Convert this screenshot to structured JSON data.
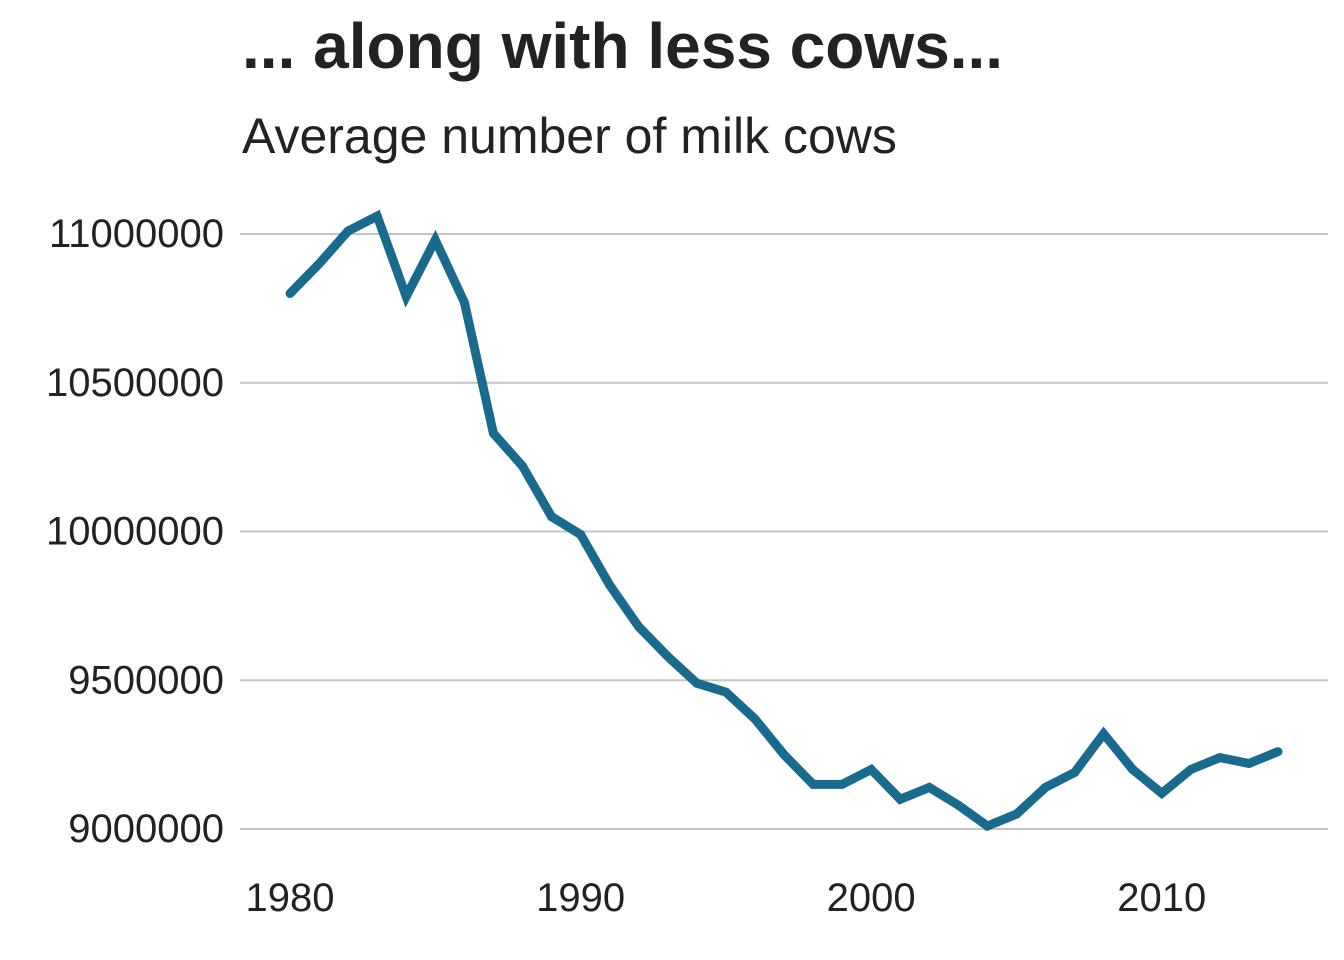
{
  "chart_data": {
    "type": "line",
    "title": "... along with less cows...",
    "subtitle": "Average number of milk cows",
    "xlabel": "",
    "ylabel": "",
    "xlim": [
      1980,
      2014
    ],
    "ylim": [
      9000000,
      11000000
    ],
    "x_ticks": [
      1980,
      1990,
      2000,
      2010
    ],
    "y_ticks": [
      9000000,
      9500000,
      10000000,
      10500000,
      11000000
    ],
    "y_tick_labels": [
      "9000000",
      "9500000",
      "10000000",
      "10500000",
      "11000000"
    ],
    "x_tick_labels": [
      "1980",
      "1990",
      "2000",
      "2010"
    ],
    "grid": "horizontal",
    "series": [
      {
        "color": "#1b6a8c",
        "x": [
          1980,
          1981,
          1982,
          1983,
          1984,
          1985,
          1986,
          1987,
          1988,
          1989,
          1990,
          1991,
          1992,
          1993,
          1994,
          1995,
          1996,
          1997,
          1998,
          1999,
          2000,
          2001,
          2002,
          2003,
          2004,
          2005,
          2006,
          2007,
          2008,
          2009,
          2010,
          2011,
          2012,
          2013,
          2014
        ],
        "y": [
          10800000,
          10900000,
          11010000,
          11060000,
          10790000,
          10980000,
          10770000,
          10330000,
          10220000,
          10050000,
          9990000,
          9820000,
          9680000,
          9580000,
          9490000,
          9460000,
          9370000,
          9250000,
          9150000,
          9150000,
          9200000,
          9100000,
          9140000,
          9080000,
          9010000,
          9050000,
          9140000,
          9190000,
          9320000,
          9200000,
          9120000,
          9200000,
          9240000,
          9220000,
          9260000
        ]
      }
    ]
  }
}
